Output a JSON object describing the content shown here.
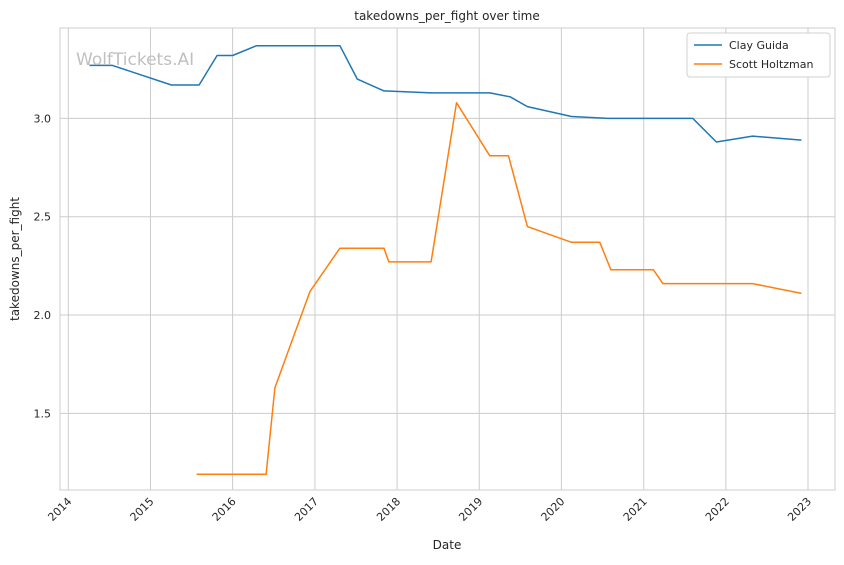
{
  "watermark": "WolfTickets.AI",
  "chart_data": {
    "type": "line",
    "title": "takedowns_per_fight over time",
    "xlabel": "Date",
    "ylabel": "takedowns_per_fight",
    "x_ticks": [
      "2014",
      "2015",
      "2016",
      "2017",
      "2018",
      "2019",
      "2020",
      "2021",
      "2022",
      "2023"
    ],
    "y_ticks": [
      "1.5",
      "2.0",
      "2.5",
      "3.0"
    ],
    "xlim": [
      "2013-11-25",
      "2023-05-01"
    ],
    "ylim": [
      1.11,
      3.46
    ],
    "grid": true,
    "legend_position": "top-right",
    "series": [
      {
        "name": "Clay Guida",
        "color": "#1f77b4",
        "points": [
          [
            "2014-04-05",
            3.27
          ],
          [
            "2014-07-16",
            3.27
          ],
          [
            "2015-04-04",
            3.17
          ],
          [
            "2015-08-05",
            3.17
          ],
          [
            "2015-10-24",
            3.32
          ],
          [
            "2016-01-01",
            3.32
          ],
          [
            "2016-04-16",
            3.37
          ],
          [
            "2017-04-22",
            3.37
          ],
          [
            "2017-07-08",
            3.2
          ],
          [
            "2017-11-04",
            3.14
          ],
          [
            "2018-06-01",
            3.13
          ],
          [
            "2019-02-17",
            3.13
          ],
          [
            "2019-05-18",
            3.11
          ],
          [
            "2019-08-03",
            3.06
          ],
          [
            "2020-02-15",
            3.01
          ],
          [
            "2020-07-25",
            3.0
          ],
          [
            "2021-08-07",
            3.0
          ],
          [
            "2021-11-20",
            2.88
          ],
          [
            "2022-04-30",
            2.91
          ],
          [
            "2022-12-03",
            2.89
          ]
        ]
      },
      {
        "name": "Scott Holtzman",
        "color": "#ff7f0e",
        "points": [
          [
            "2015-07-25",
            1.19
          ],
          [
            "2016-05-29",
            1.19
          ],
          [
            "2016-07-07",
            1.63
          ],
          [
            "2016-12-10",
            2.12
          ],
          [
            "2017-04-22",
            2.34
          ],
          [
            "2017-11-04",
            2.34
          ],
          [
            "2017-11-25",
            2.27
          ],
          [
            "2018-06-01",
            2.27
          ],
          [
            "2018-09-22",
            3.08
          ],
          [
            "2019-02-17",
            2.81
          ],
          [
            "2019-05-11",
            2.81
          ],
          [
            "2019-08-03",
            2.45
          ],
          [
            "2020-02-15",
            2.37
          ],
          [
            "2020-06-20",
            2.37
          ],
          [
            "2020-08-08",
            2.23
          ],
          [
            "2021-02-13",
            2.23
          ],
          [
            "2021-03-27",
            2.16
          ],
          [
            "2022-04-30",
            2.16
          ],
          [
            "2022-12-03",
            2.11
          ]
        ]
      }
    ]
  }
}
